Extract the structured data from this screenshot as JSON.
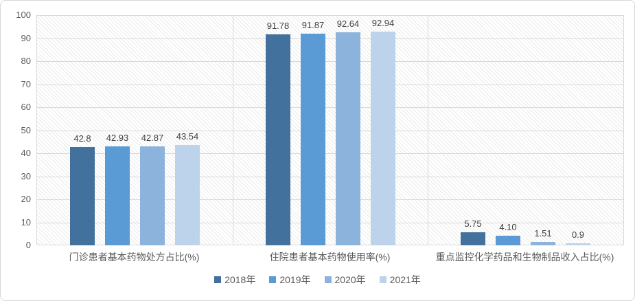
{
  "chart_data": {
    "type": "bar",
    "title": "",
    "xlabel": "",
    "ylabel": "",
    "categories": [
      "门诊患者基本药物处方占比(%)",
      "住院患者基本药物使用率(%)",
      "重点监控化学药品和生物制品收入占比(%)"
    ],
    "series": [
      {
        "name": "2018年",
        "color": "#41719c",
        "values": [
          42.8,
          91.78,
          5.75
        ],
        "labels": [
          "42.8",
          "91.78",
          "5.75"
        ]
      },
      {
        "name": "2019年",
        "color": "#5b9bd5",
        "values": [
          42.93,
          91.87,
          4.1
        ],
        "labels": [
          "42.93",
          "91.87",
          "4.10"
        ]
      },
      {
        "name": "2020年",
        "color": "#8cb3dc",
        "values": [
          42.87,
          92.64,
          1.51
        ],
        "labels": [
          "42.87",
          "92.64",
          "1.51"
        ]
      },
      {
        "name": "2021年",
        "color": "#bdd3ec",
        "values": [
          43.54,
          92.94,
          0.9
        ],
        "labels": [
          "43.54",
          "92.94",
          "0.9"
        ]
      }
    ],
    "ylim": [
      0,
      100
    ],
    "ytick_step": 10,
    "yticks": [
      "0",
      "10",
      "20",
      "30",
      "40",
      "50",
      "60",
      "70",
      "80",
      "90",
      "100"
    ],
    "grid": true,
    "grid_color": "#d9d9d9",
    "plot_hatch": "light-downward-diagonal",
    "legend_position": "bottom",
    "label_color": "#404040",
    "axis_text_color": "#595959"
  }
}
